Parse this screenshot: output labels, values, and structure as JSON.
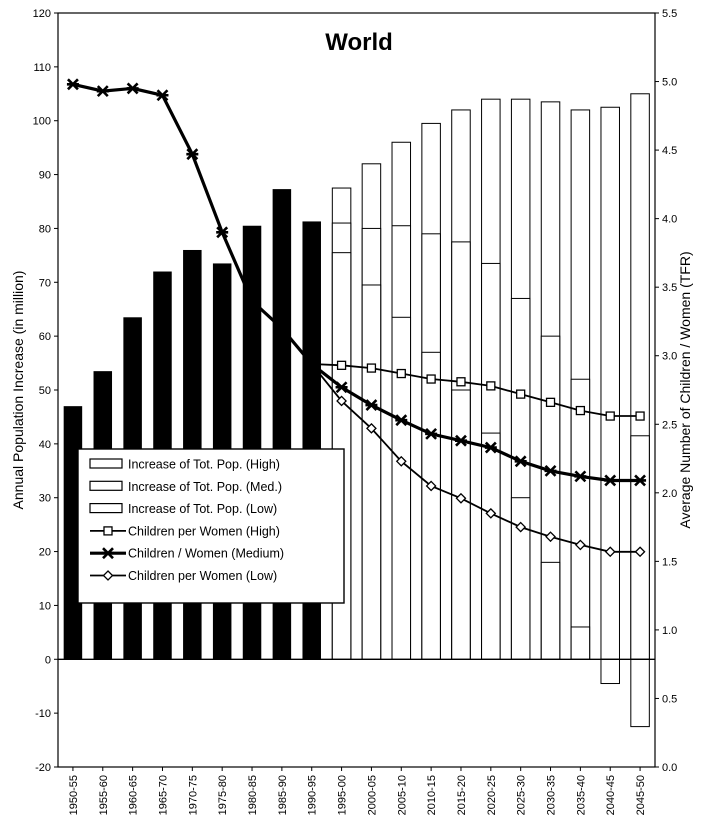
{
  "chart_data": {
    "type": "bar",
    "title": "World",
    "ylabel": "Annual  Population Increase (in million)",
    "y2label": "Average Number of Children / Women (TFR)",
    "ylim": [
      -20,
      120
    ],
    "yticks": [
      -20,
      -10,
      0,
      10,
      20,
      30,
      40,
      50,
      60,
      70,
      80,
      90,
      100,
      110,
      120
    ],
    "y2lim": [
      0.0,
      5.5
    ],
    "y2ticks": [
      "0.0",
      "0.5",
      "1.0",
      "1.5",
      "2.0",
      "2.5",
      "3.0",
      "3.5",
      "4.0",
      "4.5",
      "5.0",
      "5.5"
    ],
    "grid": false,
    "legend_position": "left-middle",
    "categories": [
      "1950-55",
      "1955-60",
      "1960-65",
      "1965-70",
      "1970-75",
      "1975-80",
      "1980-85",
      "1985-90",
      "1990-95",
      "1995-00",
      "2000-05",
      "2005-10",
      "2010-15",
      "2015-20",
      "2020-25",
      "2025-30",
      "2030-35",
      "2035-40",
      "2040-45",
      "2045-50"
    ],
    "historical_increase": [
      47,
      53.5,
      63.5,
      72,
      76,
      73.5,
      80.5,
      87.3,
      81.3
    ],
    "bar_series": [
      {
        "name": "Increase of Tot. Pop. (High)",
        "values": [
          null,
          null,
          null,
          null,
          null,
          null,
          null,
          null,
          null,
          87.5,
          92,
          96,
          99.5,
          102,
          104,
          104,
          103.5,
          102,
          102.5,
          105
        ]
      },
      {
        "name": "Increase of Tot. Pop. (Med.)",
        "values": [
          null,
          null,
          null,
          null,
          null,
          null,
          null,
          null,
          null,
          81,
          80,
          80.5,
          79,
          77.5,
          73.5,
          67,
          60,
          52,
          null,
          41.5
        ]
      },
      {
        "name": "Increase of Tot. Pop. (Low)",
        "values": [
          null,
          null,
          null,
          null,
          null,
          null,
          null,
          null,
          null,
          75.5,
          69.5,
          63.5,
          57,
          50,
          42,
          30,
          18,
          6,
          -4.5,
          -12.5
        ]
      }
    ],
    "line_series": [
      {
        "name": "Children per Women (High)",
        "marker": "square",
        "values": [
          null,
          null,
          null,
          null,
          null,
          null,
          null,
          null,
          2.94,
          2.93,
          2.91,
          2.87,
          2.83,
          2.81,
          2.78,
          2.72,
          2.66,
          2.6,
          2.56,
          2.56
        ]
      },
      {
        "name": "Children / Women (Medium)",
        "marker": "star",
        "values": [
          4.98,
          4.93,
          4.95,
          4.9,
          4.47,
          3.9,
          3.4,
          3.2,
          2.94,
          2.77,
          2.64,
          2.53,
          2.43,
          2.38,
          2.33,
          2.23,
          2.16,
          2.12,
          2.09,
          2.09
        ]
      },
      {
        "name": "Children per Women (Low)",
        "marker": "diamond",
        "values": [
          null,
          null,
          null,
          null,
          null,
          null,
          null,
          null,
          2.94,
          2.67,
          2.47,
          2.23,
          2.05,
          1.96,
          1.85,
          1.75,
          1.68,
          1.62,
          1.57,
          1.57
        ]
      }
    ]
  }
}
